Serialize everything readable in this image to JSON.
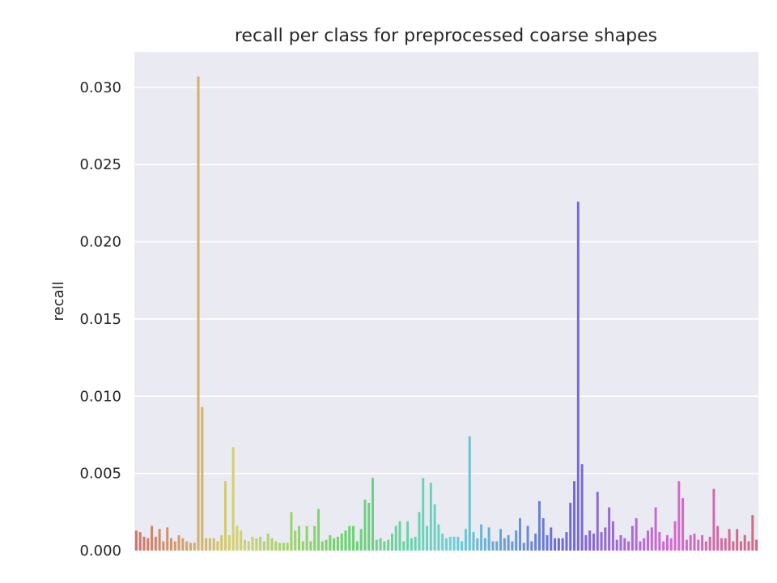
{
  "chart_data": {
    "type": "bar",
    "title": "recall per class for preprocessed coarse shapes",
    "xlabel": "",
    "ylabel": "recall",
    "ylim": [
      0,
      0.0323
    ],
    "yticks": [
      "0.000",
      "0.005",
      "0.010",
      "0.015",
      "0.020",
      "0.025",
      "0.030"
    ],
    "yticks_values": [
      0,
      0.005,
      0.01,
      0.015,
      0.02,
      0.025,
      0.03
    ],
    "grid": true,
    "legend": "none",
    "background": "#eaeaf2",
    "values": [
      0.0013,
      0.0012,
      0.0009,
      0.0008,
      0.0016,
      0.0009,
      0.0014,
      0.0006,
      0.0015,
      0.0008,
      0.0006,
      0.001,
      0.0008,
      0.0006,
      0.0005,
      0.0005,
      0.0307,
      0.0093,
      0.0008,
      0.0008,
      0.0008,
      0.0006,
      0.001,
      0.0045,
      0.001,
      0.0067,
      0.0016,
      0.0013,
      0.0007,
      0.0006,
      0.0009,
      0.0008,
      0.0009,
      0.0006,
      0.0011,
      0.0008,
      0.0006,
      0.0005,
      0.0005,
      0.0005,
      0.0025,
      0.0013,
      0.0016,
      0.0006,
      0.0016,
      0.0006,
      0.0016,
      0.0027,
      0.0006,
      0.0007,
      0.001,
      0.0008,
      0.0009,
      0.0011,
      0.0013,
      0.0016,
      0.0016,
      0.0006,
      0.0014,
      0.0033,
      0.0031,
      0.0047,
      0.0007,
      0.0008,
      0.0006,
      0.0007,
      0.0011,
      0.0016,
      0.0019,
      0.0006,
      0.0019,
      0.0008,
      0.0009,
      0.0025,
      0.0047,
      0.0016,
      0.0044,
      0.003,
      0.0017,
      0.0011,
      0.0008,
      0.0009,
      0.0009,
      0.0009,
      0.0006,
      0.0014,
      0.0074,
      0.0012,
      0.0008,
      0.0017,
      0.0008,
      0.0015,
      0.0006,
      0.0006,
      0.0014,
      0.0008,
      0.001,
      0.0006,
      0.0013,
      0.0021,
      0.0005,
      0.0016,
      0.0006,
      0.0011,
      0.0032,
      0.0021,
      0.001,
      0.0015,
      0.0008,
      0.0008,
      0.0008,
      0.0012,
      0.0031,
      0.0045,
      0.0226,
      0.0056,
      0.001,
      0.0013,
      0.0011,
      0.0038,
      0.0012,
      0.0015,
      0.0028,
      0.0019,
      0.0007,
      0.001,
      0.0008,
      0.0006,
      0.0016,
      0.0021,
      0.0006,
      0.0008,
      0.0013,
      0.0015,
      0.0028,
      0.0012,
      0.0006,
      0.001,
      0.0008,
      0.0019,
      0.0045,
      0.0034,
      0.0007,
      0.001,
      0.0011,
      0.0007,
      0.001,
      0.0006,
      0.0009,
      0.004,
      0.0016,
      0.0008,
      0.0008,
      0.0014,
      0.0006,
      0.0014,
      0.0006,
      0.001,
      0.0006,
      0.0023,
      0.0007
    ]
  }
}
